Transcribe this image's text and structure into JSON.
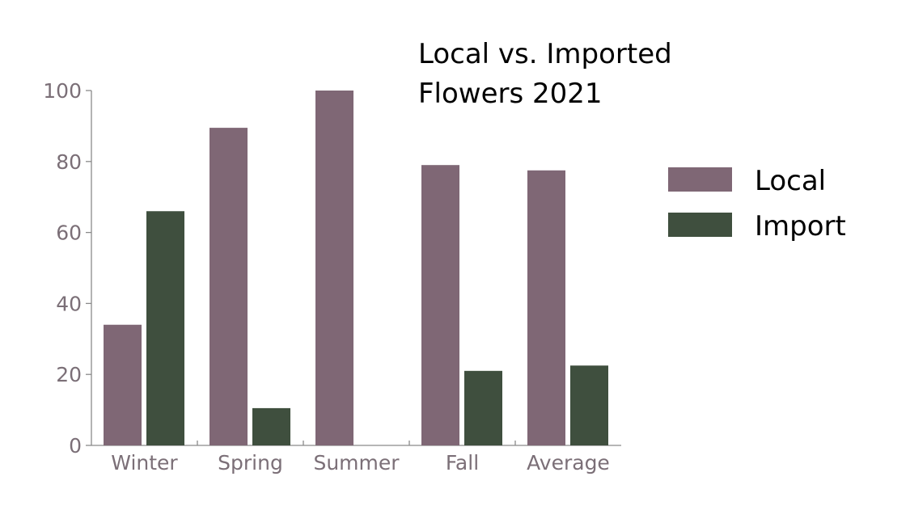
{
  "chart_data": {
    "type": "bar",
    "title_lines": [
      "Local vs. Imported",
      "Flowers 2021"
    ],
    "categories": [
      "Winter",
      "Spring",
      "Summer",
      "Fall",
      "Average"
    ],
    "series": [
      {
        "name": "Local",
        "color": "#7f6775",
        "values": [
          34,
          89.5,
          100,
          79,
          77.5
        ]
      },
      {
        "name": "Import",
        "color": "#3f4f3e",
        "values": [
          66,
          10.5,
          0,
          21,
          22.5
        ]
      }
    ],
    "yticks": [
      0,
      20,
      40,
      60,
      80,
      100
    ],
    "ylim": [
      0,
      100
    ],
    "legend_position": "right",
    "grid": false,
    "axis_color": "#8a8a8a",
    "tick_label_color": "#7b6f77"
  }
}
